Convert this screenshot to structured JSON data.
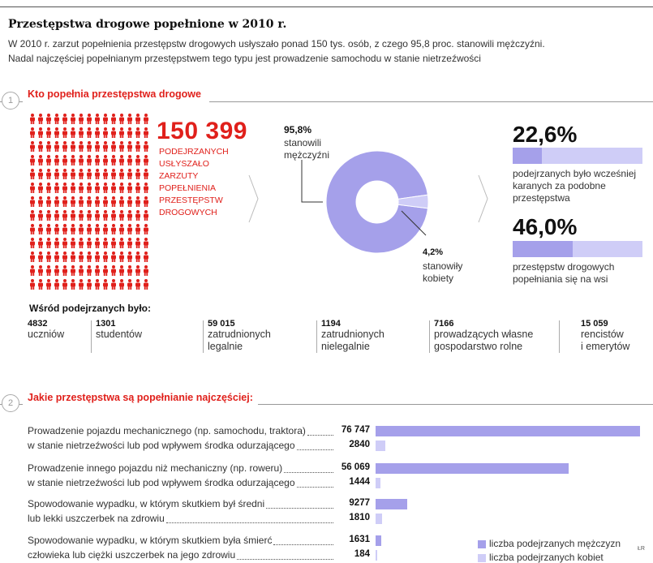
{
  "header": {
    "title": "Przestępstwa drogowe popełnione w 2010 r.",
    "lead_line1": "W 2010 r. zarzut popełnienia przestępstw drogowych usłyszało ponad 150 tys. osób, z czego 95,8 proc. stanowili mężczyźni.",
    "lead_line2": "Nadal najczęściej popełnianym przestępstwem tego typu jest prowadzenie samochodu w stanie nietrzeźwości"
  },
  "section1": {
    "number": "1",
    "title": "Kto popełnia przestępstwa drogowe",
    "total": "150 399",
    "total_caption": [
      "PODEJRZANYCH",
      "USŁYSZAŁO",
      "ZARZUTY",
      "POPEŁNIENIA",
      "PRZESTĘPSTW",
      "DROGOWYCH"
    ],
    "men_pct": "95,8%",
    "men_label1": "stanowili",
    "men_label2": "mężczyźni",
    "women_pct": "4,2%",
    "women_label1": "stanowiły",
    "women_label2": "kobiety",
    "stat1_pct": "22,6%",
    "stat1_value": 22.6,
    "stat1_text": [
      "podejrzanych było wcześniej",
      "karanych za podobne",
      "przestępstwa"
    ],
    "stat2_pct": "46,0%",
    "stat2_value": 46.0,
    "stat2_text": [
      "przestępstw drogowych",
      "popełniania się na wsi"
    ],
    "among_title": "Wśród podejrzanych było:",
    "among": [
      {
        "num": "4832",
        "label1": "uczniów",
        "label2": ""
      },
      {
        "num": "1301",
        "label1": "studentów",
        "label2": ""
      },
      {
        "num": "59 015",
        "label1": "zatrudnionych",
        "label2": "legalnie"
      },
      {
        "num": "1194",
        "label1": "zatrudnionych",
        "label2": "nielegalnie"
      },
      {
        "num": "7166",
        "label1": "prowadzących własne",
        "label2": "gospodarstwo rolne"
      },
      {
        "num": "15 059",
        "label1": "rencistów",
        "label2": "i emerytów"
      }
    ],
    "colors": {
      "red": "#e0201b",
      "men": "#a5a0ea",
      "women": "#cfcdf7"
    }
  },
  "section2": {
    "number": "2",
    "title": "Jakie przestępstwa są popełnianie najczęściej:",
    "author": "ŁR"
  },
  "chart_data": {
    "type": "bar",
    "title": "Jakie przestępstwa są popełnianie najczęściej:",
    "orientation": "horizontal",
    "categories": [
      [
        "Prowadzenie pojazdu mechanicznego (np. samochodu, traktora)",
        "w stanie nietrzeźwości lub pod wpływem środka odurzającego"
      ],
      [
        "Prowadzenie innego pojazdu niż mechaniczny (np. roweru)",
        "w stanie nietrzeźwości lub pod wpływem środka odurzającego"
      ],
      [
        "Spowodowanie wypadku, w którym skutkiem był średni",
        "lub lekki uszczerbek na zdrowiu"
      ],
      [
        "Spowodowanie wypadku, w którym skutkiem była śmierć",
        "człowieka lub ciężki uszczerbek na jego zdrowiu"
      ]
    ],
    "series": [
      {
        "name": "liczba podejrzanych mężczyzn",
        "color": "#a5a0ea",
        "values": [
          76747,
          56069,
          9277,
          1631
        ],
        "labels": [
          "76 747",
          "56 069",
          "9277",
          "1631"
        ]
      },
      {
        "name": "liczba podejrzanych kobiet",
        "color": "#cfcdf7",
        "values": [
          2840,
          1444,
          1810,
          184
        ],
        "labels": [
          "2840",
          "1444",
          "1810",
          "184"
        ]
      }
    ],
    "xlim": [
      0,
      76747
    ]
  }
}
